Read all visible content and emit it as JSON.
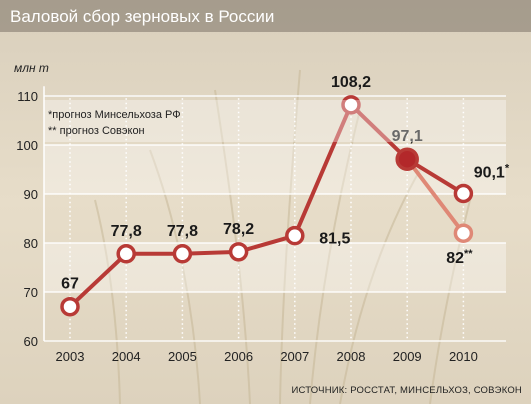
{
  "chart_data": {
    "type": "line",
    "title": "Валовой сбор зерновых в России",
    "ylabel": "млн т",
    "categories": [
      "2003",
      "2004",
      "2005",
      "2006",
      "2007",
      "2008",
      "2009",
      "2010"
    ],
    "y_ticks": [
      60,
      70,
      80,
      90,
      100,
      110
    ],
    "ylim": [
      60,
      112
    ],
    "grid": true,
    "series": [
      {
        "name": "прогноз Минсельхоза РФ",
        "x": [
          "2003",
          "2004",
          "2005",
          "2006",
          "2007",
          "2008",
          "2009",
          "2010"
        ],
        "values": [
          67,
          77.8,
          77.8,
          78.2,
          81.5,
          108.2,
          97.1,
          90.1
        ],
        "labels": [
          "67",
          "77,8",
          "77,8",
          "78,2",
          "81,5",
          "108,2",
          "97,1",
          "90,1"
        ],
        "label_marks": [
          "",
          "",
          "",
          "",
          "",
          "",
          "",
          "*"
        ]
      },
      {
        "name": "прогноз Совэкон",
        "x": [
          "2009",
          "2010"
        ],
        "values": [
          97.1,
          82
        ],
        "labels": [
          "",
          "82"
        ],
        "label_marks": [
          "",
          "**"
        ]
      }
    ],
    "legend": {
      "placement": "top-left",
      "items": [
        "*прогноз Минсельхоза РФ",
        "** прогноз Совэкон"
      ]
    },
    "source": "ИСТОЧНИК: РОССТАТ, МИНСЕЛЬХОЗ, СОВЭКОН",
    "colors": {
      "main_line": "#b83a36",
      "alt_line": "#df8876",
      "marker_fill": "#ffffff",
      "filled_marker": "#b3282a",
      "background": "#e6dcc8",
      "title_text": "#ffffff"
    }
  }
}
